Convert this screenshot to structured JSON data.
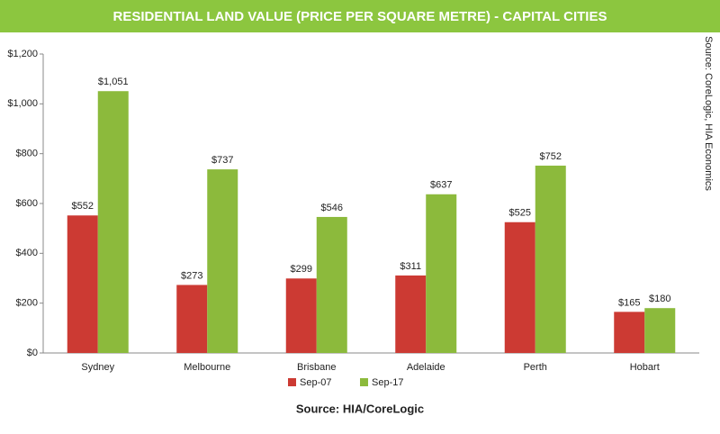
{
  "chart_data": {
    "type": "bar",
    "title": "RESIDENTIAL LAND VALUE (PRICE PER SQUARE METRE) - CAPITAL CITIES",
    "categories": [
      "Sydney",
      "Melbourne",
      "Brisbane",
      "Adelaide",
      "Perth",
      "Hobart"
    ],
    "series": [
      {
        "name": "Sep-07",
        "color": "#cc3a33",
        "values": [
          552,
          273,
          299,
          311,
          525,
          165
        ],
        "value_labels": [
          "$552",
          "$273",
          "$299",
          "$311",
          "$525",
          "$165"
        ]
      },
      {
        "name": "Sep-17",
        "color": "#8cba3c",
        "values": [
          1051,
          737,
          546,
          637,
          752,
          180
        ],
        "value_labels": [
          "$1,051",
          "$737",
          "$546",
          "$637",
          "$752",
          "$180"
        ]
      }
    ],
    "ylim": [
      0,
      1200
    ],
    "yticks": [
      {
        "value": 0,
        "label": "$0"
      },
      {
        "value": 200,
        "label": "$200"
      },
      {
        "value": 400,
        "label": "$400"
      },
      {
        "value": 600,
        "label": "$600"
      },
      {
        "value": 800,
        "label": "$800"
      },
      {
        "value": 1000,
        "label": "$1,000"
      },
      {
        "value": 1200,
        "label": "$1,200"
      }
    ],
    "side_note": "Source: CoreLogic, HIA Economics",
    "footer": "Source: HIA/CoreLogic",
    "banner_color": "#8cc63f",
    "grid": false
  }
}
